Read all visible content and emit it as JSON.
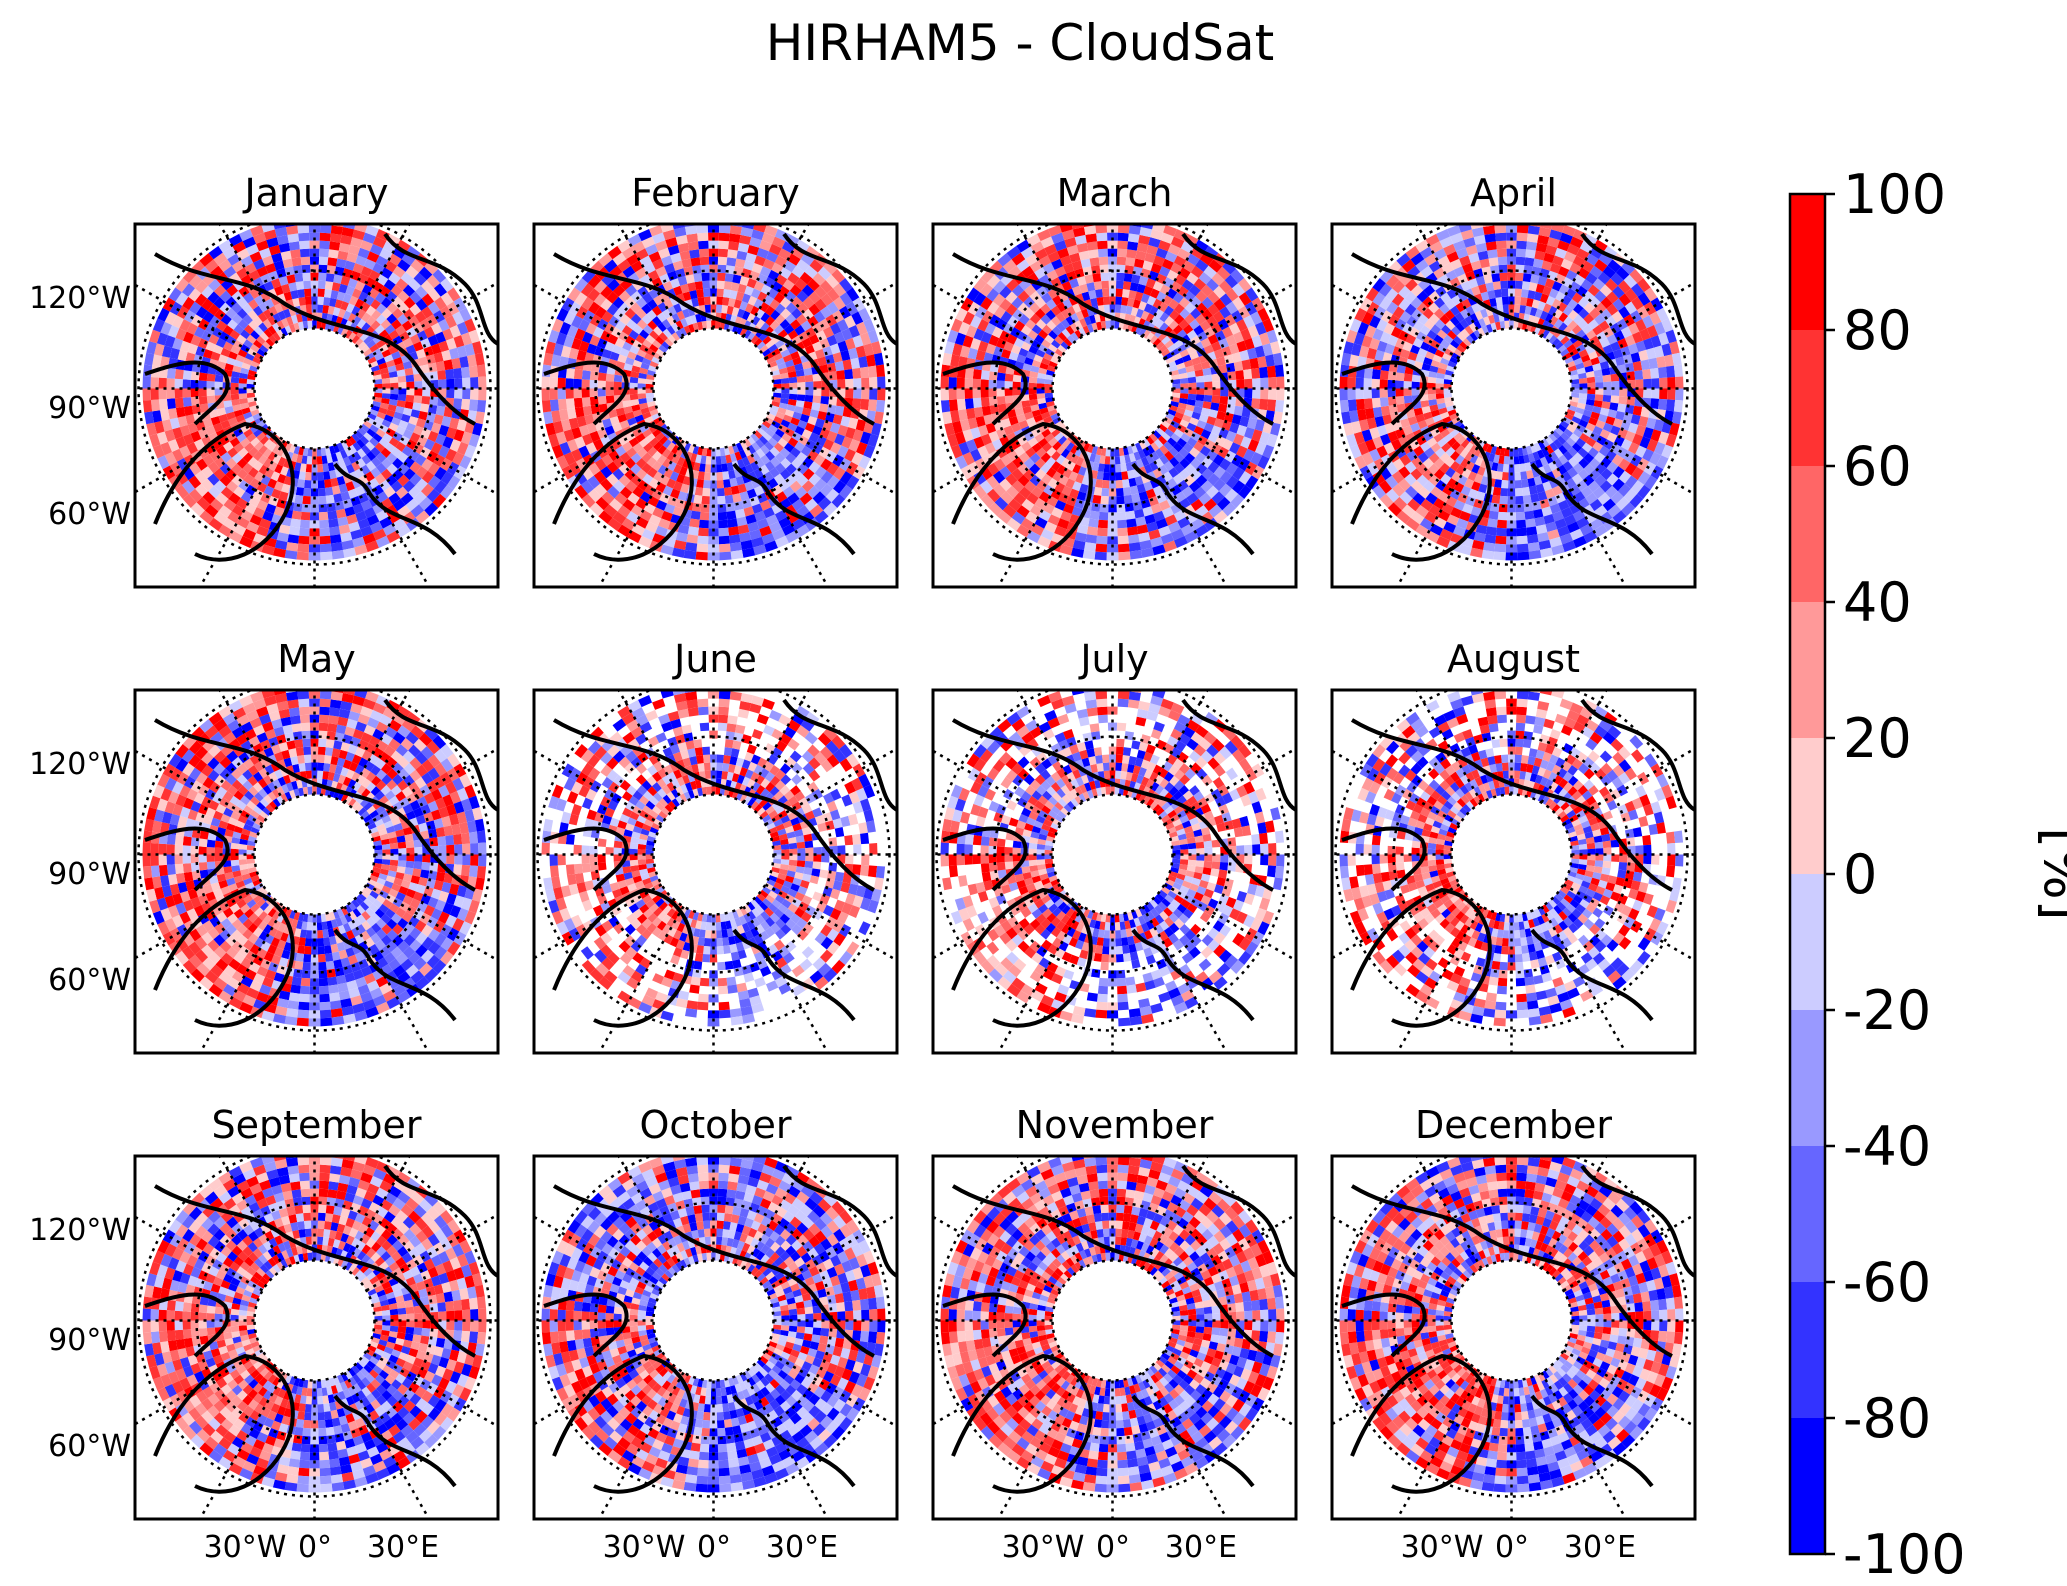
{
  "title": "HIRHAM5 - CloudSat",
  "chart_data": {
    "type": "heatmap",
    "projection": "north-polar-stereographic",
    "panels": [
      {
        "month": "January"
      },
      {
        "month": "February"
      },
      {
        "month": "March"
      },
      {
        "month": "April"
      },
      {
        "month": "May"
      },
      {
        "month": "June"
      },
      {
        "month": "July"
      },
      {
        "month": "August"
      },
      {
        "month": "September"
      },
      {
        "month": "October"
      },
      {
        "month": "November"
      },
      {
        "month": "December"
      }
    ],
    "y_tick_labels": [
      "120°W",
      "90°W",
      "60°W"
    ],
    "x_tick_labels": [
      "30°W",
      "0°",
      "30°E"
    ],
    "colorbar": {
      "label": "[%]",
      "range": [
        -100,
        100
      ],
      "ticks": [
        "100",
        "80",
        "60",
        "40",
        "20",
        "0",
        "-20",
        "-40",
        "-60",
        "-80",
        "-100"
      ],
      "colors": [
        "#ff0000",
        "#ff3333",
        "#ff6666",
        "#ff9999",
        "#ffcccc",
        "#ccccff",
        "#9999ff",
        "#6666ff",
        "#3333ff",
        "#0000ff"
      ]
    }
  }
}
